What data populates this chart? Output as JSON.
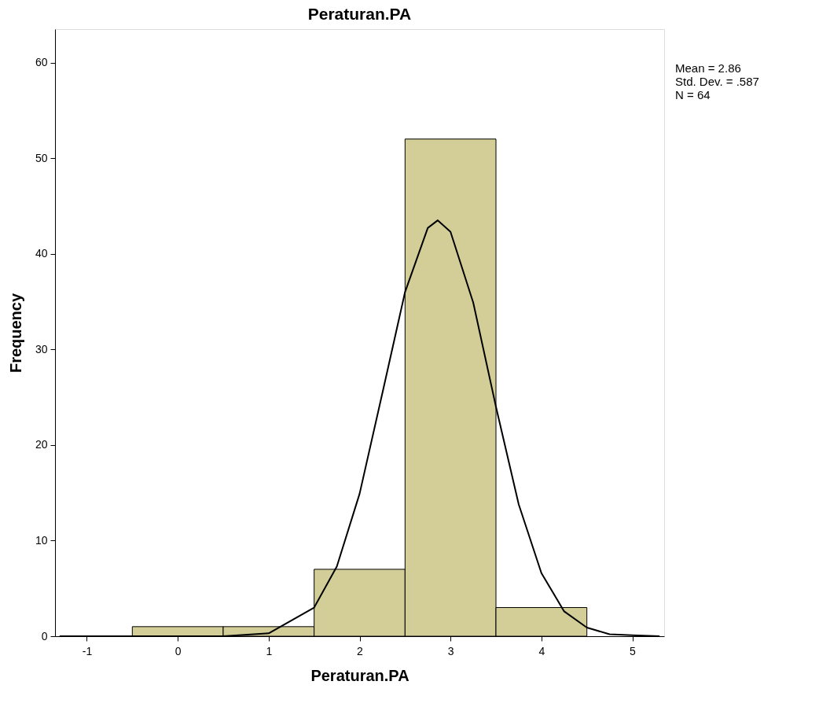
{
  "chart_data": {
    "type": "histogram",
    "title": "Peraturan.PA",
    "xlabel": "Peraturan.PA",
    "ylabel": "Frequency",
    "bins": [
      -0.5,
      0.5,
      1.5,
      2.5,
      3.5,
      4.5
    ],
    "values": [
      1,
      1,
      7,
      52,
      3
    ],
    "color": "#d3ce97",
    "series": [
      {
        "type": "line",
        "color": "#000000",
        "x": [
          -1.3,
          0.5,
          1,
          1.5,
          1.75,
          2,
          2.25,
          2.5,
          2.75,
          2.86,
          3,
          3.25,
          3.5,
          3.75,
          4,
          4.25,
          4.5,
          4.75,
          5,
          5.3
        ],
        "values": [
          0,
          0,
          0.3,
          3,
          7.3,
          14.9,
          25.4,
          36,
          42.7,
          43.5,
          42.3,
          34.9,
          24,
          13.8,
          6.6,
          2.6,
          0.9,
          0.2,
          0.1,
          0
        ]
      }
    ],
    "xlim": [
      -1.35,
      5.35
    ],
    "xticks": [
      -1,
      0,
      1,
      2,
      3,
      4,
      5
    ],
    "ylim": [
      0,
      63.5
    ],
    "yticks": [
      0,
      10,
      20,
      30,
      40,
      50,
      60
    ],
    "grid": false,
    "annotations": [
      "Mean = 2.86",
      "Std. Dev. = .587",
      "N = 64"
    ]
  }
}
